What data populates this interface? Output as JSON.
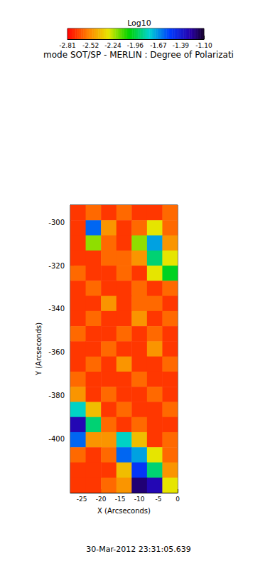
{
  "chart_data": {
    "type": "heatmap",
    "title": "mode SOT/SP - MERLIN : Degree of Polarizati",
    "subtitle": "30-Mar-2012 23:31:05.639",
    "x_label": "X (Arcseconds)",
    "y_label": "Y (Arcseconds)",
    "xlim": [
      -28,
      0
    ],
    "xticks": [
      -25,
      -20,
      -15,
      -10,
      -5,
      0
    ],
    "ylim": [
      -425,
      -292
    ],
    "yticks": [
      -400,
      -380,
      -360,
      -340,
      -320,
      -300
    ],
    "x_edges": [
      -28,
      -24,
      -20,
      -16,
      -12,
      -8,
      -4,
      0
    ],
    "y_edges": [
      -292,
      -299,
      -306,
      -313,
      -320,
      -327,
      -334,
      -341,
      -348,
      -355,
      -362,
      -369,
      -376,
      -383,
      -390,
      -397,
      -404,
      -411,
      -418,
      -425
    ],
    "cells": [
      [
        -2.7,
        -2.6,
        -2.7,
        -2.6,
        -2.7,
        -2.7,
        -2.6
      ],
      [
        -2.7,
        -1.6,
        -2.5,
        -2.7,
        -2.6,
        -2.3,
        -2.6
      ],
      [
        -2.7,
        -2.2,
        -2.6,
        -2.7,
        -2.2,
        -1.7,
        -2.5
      ],
      [
        -2.7,
        -2.7,
        -2.6,
        -2.6,
        -2.5,
        -1.9,
        -2.3
      ],
      [
        -2.6,
        -2.7,
        -2.7,
        -2.6,
        -2.7,
        -2.3,
        -2.0
      ],
      [
        -2.7,
        -2.6,
        -2.7,
        -2.7,
        -2.6,
        -2.7,
        -2.6
      ],
      [
        -2.7,
        -2.7,
        -2.5,
        -2.7,
        -2.6,
        -2.6,
        -2.7
      ],
      [
        -2.7,
        -2.6,
        -2.7,
        -2.7,
        -2.5,
        -2.7,
        -2.6
      ],
      [
        -2.6,
        -2.7,
        -2.7,
        -2.6,
        -2.7,
        -2.6,
        -2.7
      ],
      [
        -2.7,
        -2.7,
        -2.6,
        -2.7,
        -2.7,
        -2.5,
        -2.7
      ],
      [
        -2.7,
        -2.6,
        -2.7,
        -2.5,
        -2.7,
        -2.7,
        -2.6
      ],
      [
        -2.6,
        -2.7,
        -2.7,
        -2.7,
        -2.6,
        -2.7,
        -2.7
      ],
      [
        -2.5,
        -2.7,
        -2.6,
        -2.7,
        -2.7,
        -2.6,
        -2.7
      ],
      [
        -1.8,
        -2.4,
        -2.7,
        -2.6,
        -2.7,
        -2.7,
        -2.6
      ],
      [
        -1.3,
        -1.9,
        -2.6,
        -2.7,
        -2.6,
        -2.7,
        -2.7
      ],
      [
        -1.6,
        -2.5,
        -2.5,
        -1.8,
        -2.4,
        -2.7,
        -2.6
      ],
      [
        -2.6,
        -2.7,
        -2.6,
        -1.6,
        -1.7,
        -2.3,
        -2.6
      ],
      [
        -2.7,
        -2.7,
        -2.7,
        -2.4,
        -1.5,
        -1.9,
        -2.5
      ],
      [
        -2.7,
        -2.7,
        -2.6,
        -2.5,
        -1.2,
        -1.3,
        -2.3
      ]
    ],
    "colorbar": {
      "label": "Log10",
      "range": [
        -2.81,
        -1.1
      ],
      "ticks": [
        -2.81,
        -2.52,
        -2.24,
        -1.96,
        -1.67,
        -1.39,
        {
          "value": -1.1,
          "label": "-1.10"
        }
      ]
    },
    "grid": false
  }
}
